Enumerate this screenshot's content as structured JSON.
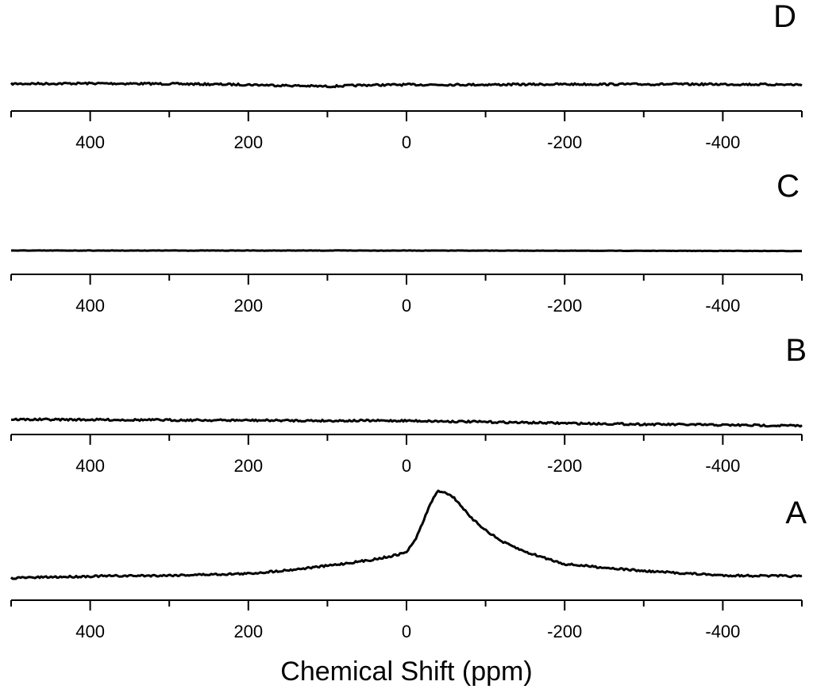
{
  "chart_data": {
    "type": "line",
    "xlabel": "Chemical Shift (ppm)",
    "ylabel": "",
    "xlim": [
      500,
      -500
    ],
    "x_reversed": true,
    "x_ticks": [
      400,
      200,
      0,
      -200,
      -400
    ],
    "x_minor_ticks": [
      500,
      300,
      100,
      -100,
      -300,
      -500
    ],
    "grid": false,
    "panels": [
      {
        "label": "D",
        "series": [
          {
            "x": [
              500,
              400,
              300,
              200,
              150,
              100,
              50,
              0,
              -100,
              -200,
              -300,
              -400,
              -500
            ],
            "y": [
              0.03,
              0.035,
              0.03,
              0.02,
              0.01,
              0.0,
              0.015,
              0.02,
              0.02,
              0.025,
              0.025,
              0.025,
              0.02
            ]
          }
        ]
      },
      {
        "label": "C",
        "series": [
          {
            "x": [
              500,
              0,
              -500
            ],
            "y": [
              0.0,
              0.0,
              -0.005
            ]
          }
        ]
      },
      {
        "label": "B",
        "series": [
          {
            "x": [
              500,
              400,
              300,
              200,
              100,
              0,
              -100,
              -200,
              -300,
              -400,
              -500
            ],
            "y": [
              0.05,
              0.048,
              0.045,
              0.043,
              0.04,
              0.04,
              0.03,
              0.02,
              0.012,
              0.006,
              0.0
            ]
          }
        ]
      },
      {
        "label": "A",
        "series": [
          {
            "x": [
              500,
              400,
              300,
              200,
              150,
              100,
              50,
              25,
              10,
              0,
              -10,
              -20,
              -30,
              -40,
              -50,
              -60,
              -70,
              -80,
              -100,
              -120,
              -150,
              -200,
              -300,
              -400,
              -500
            ],
            "y": [
              0.0,
              0.02,
              0.03,
              0.05,
              0.09,
              0.14,
              0.2,
              0.24,
              0.27,
              0.3,
              0.42,
              0.62,
              0.85,
              1.0,
              0.98,
              0.92,
              0.82,
              0.7,
              0.55,
              0.42,
              0.3,
              0.16,
              0.08,
              0.03,
              0.02
            ]
          }
        ]
      }
    ]
  }
}
